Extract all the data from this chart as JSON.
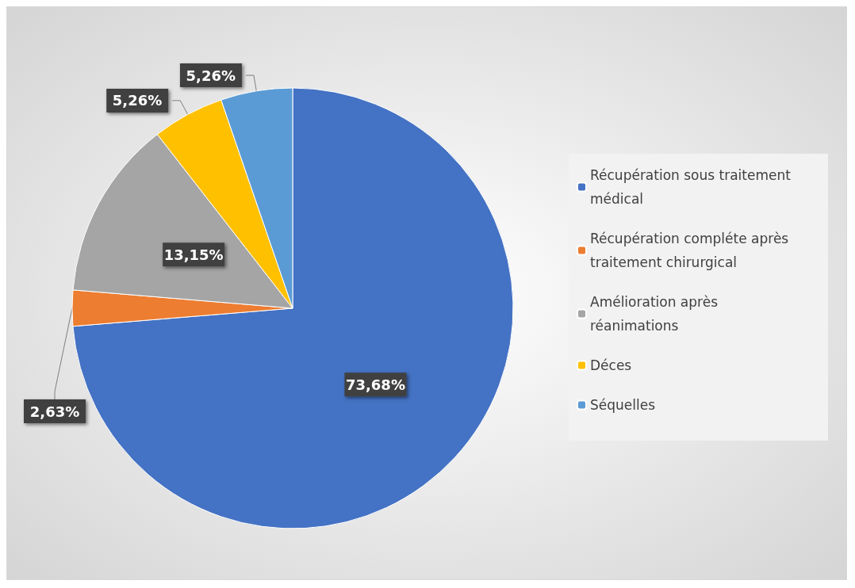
{
  "chart_data": {
    "type": "pie",
    "categories": [
      "Récupération sous traitement médical",
      "Récupération compléte après traitement chirurgical",
      "Amélioration après réanimations",
      "Déces",
      "Séquelles"
    ],
    "values": [
      73.68,
      2.63,
      13.15,
      5.26,
      5.26
    ],
    "colors": [
      "#4472c4",
      "#ed7d31",
      "#a5a5a5",
      "#ffc000",
      "#5b9bd5"
    ],
    "value_labels": [
      "73,68%",
      "2,63%",
      "13,15%",
      "5,26%",
      "5,26%"
    ],
    "legend": "right"
  }
}
